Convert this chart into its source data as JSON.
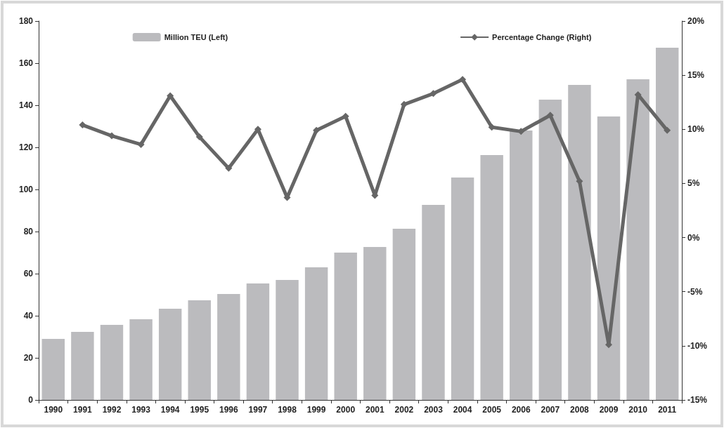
{
  "chart_data": {
    "type": "bar",
    "categories": [
      "1990",
      "1991",
      "1992",
      "1993",
      "1994",
      "1995",
      "1996",
      "1997",
      "1998",
      "1999",
      "2000",
      "2001",
      "2002",
      "2003",
      "2004",
      "2005",
      "2006",
      "2007",
      "2008",
      "2009",
      "2010",
      "2011"
    ],
    "series": [
      {
        "name": "Million TEU (Left)",
        "color": "#bbbbbe",
        "values": [
          29,
          32.3,
          35.7,
          38.3,
          43.3,
          47.3,
          50.3,
          55.3,
          57,
          63,
          70,
          72.7,
          81.3,
          92.7,
          105.7,
          116.3,
          128,
          142.7,
          149.7,
          134.7,
          152.3,
          167.3
        ]
      },
      {
        "name": "Percentage Change (Right)",
        "type": "line",
        "axis": "y2",
        "color": "#666666",
        "marker": "diamond",
        "values": [
          null,
          10.4,
          9.4,
          8.6,
          13.1,
          9.3,
          6.4,
          10.0,
          3.7,
          9.9,
          11.2,
          3.9,
          12.3,
          13.3,
          14.6,
          10.2,
          9.8,
          11.3,
          5.2,
          -9.9,
          13.2,
          9.9
        ]
      }
    ],
    "ylim": [
      0,
      180
    ],
    "yticks": [
      0,
      20,
      40,
      60,
      80,
      100,
      120,
      140,
      160,
      180
    ],
    "y2lim": [
      -15,
      20
    ],
    "y2ticks": [
      {
        "value": -15,
        "label": "-15%"
      },
      {
        "value": -10,
        "label": "-10%"
      },
      {
        "value": -5,
        "label": "-5%"
      },
      {
        "value": 0,
        "label": "0%"
      },
      {
        "value": 5,
        "label": "5%"
      },
      {
        "value": 10,
        "label": "10%"
      },
      {
        "value": 15,
        "label": "15%"
      },
      {
        "value": 20,
        "label": "20%"
      }
    ],
    "grid": false,
    "legend": "top"
  }
}
